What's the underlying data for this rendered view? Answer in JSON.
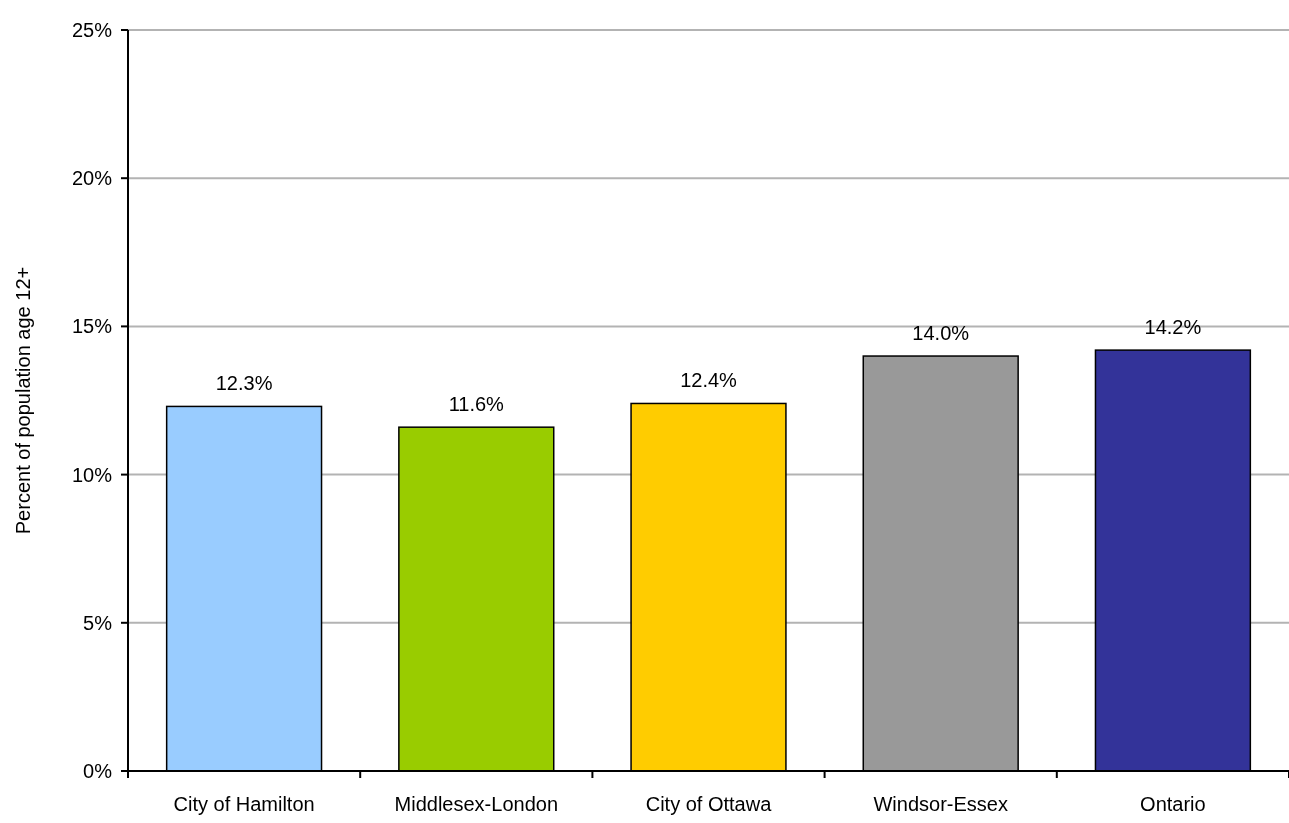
{
  "chart_data": {
    "type": "bar",
    "ylabel": "Percent of population age 12+",
    "categories": [
      "City of Hamilton",
      "Middlesex-London",
      "City of Ottawa",
      "Windsor-Essex",
      "Ontario"
    ],
    "values": [
      12.3,
      11.6,
      12.4,
      14.0,
      14.2
    ],
    "colors": [
      "#99ccff",
      "#99cc00",
      "#ffcc00",
      "#999999",
      "#333399"
    ],
    "value_labels": [
      "12.3%",
      "11.6%",
      "12.4%",
      "14.0%",
      "14.2%"
    ],
    "ylim": [
      0,
      25
    ],
    "yticks": [
      {
        "value": 0,
        "label": "0%"
      },
      {
        "value": 5,
        "label": "5%"
      },
      {
        "value": 10,
        "label": "10%"
      },
      {
        "value": 15,
        "label": "15%"
      },
      {
        "value": 20,
        "label": "20%"
      },
      {
        "value": 25,
        "label": "25%"
      }
    ],
    "grid": "y"
  }
}
